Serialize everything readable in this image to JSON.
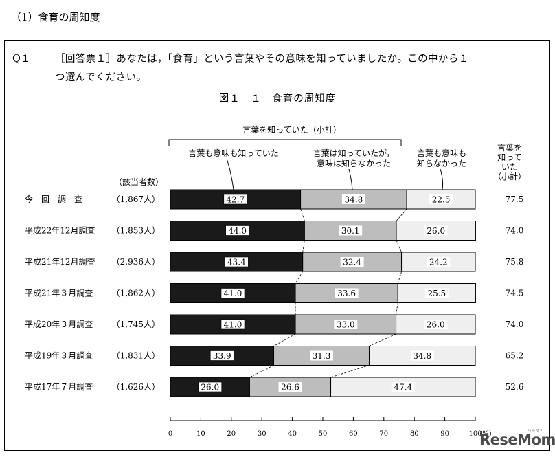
{
  "heading": "（1）食育の周知度",
  "question": {
    "number": "Q１",
    "line1": "［回答票１］あなたは，「食育」という言葉やその意味を知っていましたか。この中から１",
    "line2": "つ選んでください。"
  },
  "chart_data": {
    "type": "bar",
    "stacked": true,
    "orientation": "horizontal",
    "title": "図１－１　食育の周知度",
    "group_label": "言葉を知っていた（小計）",
    "respondents_header": "（該当者数）",
    "subtotal_header": [
      "言葉を",
      "知って",
      "いた",
      "（小計）"
    ],
    "xlabel": "(%)",
    "xlim": [
      0,
      100
    ],
    "xticks": [
      0,
      10,
      20,
      30,
      40,
      50,
      60,
      70,
      80,
      90,
      100
    ],
    "categories": [
      "今　回　調　査",
      "平成22年12月調査",
      "平成21年12月調査",
      "平成21年３月調査",
      "平成20年３月調査",
      "平成19年３月調査",
      "平成17年７月調査"
    ],
    "respondents": [
      "（1,867人）",
      "（1,853人）",
      "（2,936人）",
      "（1,862人）",
      "（1,745人）",
      "（1,831人）",
      "（1,626人）"
    ],
    "series": [
      {
        "name": "言葉も意味も知っていた",
        "color": "#1a1a1a",
        "values": [
          42.7,
          44.0,
          43.4,
          41.0,
          41.0,
          33.9,
          26.0
        ]
      },
      {
        "name": "言葉は知っていたが，意味は知らなかった",
        "color": "#bdbdbd",
        "values": [
          34.8,
          30.1,
          32.4,
          33.6,
          33.0,
          31.3,
          26.6
        ]
      },
      {
        "name": "言葉も意味も知らなかった",
        "color": "#efefef",
        "values": [
          22.5,
          26.0,
          24.2,
          25.5,
          26.0,
          34.8,
          47.4
        ]
      }
    ],
    "legend_labels": [
      [
        "言葉も意味も知っていた"
      ],
      [
        "言葉は知っていたが，",
        "意味は知らなかった"
      ],
      [
        "言葉も意味も",
        "知らなかった"
      ]
    ],
    "subtotals": [
      77.5,
      74.0,
      75.8,
      74.5,
      74.0,
      65.2,
      52.6
    ]
  },
  "watermark": {
    "text": "ReseMom",
    "small": "リセマム"
  }
}
